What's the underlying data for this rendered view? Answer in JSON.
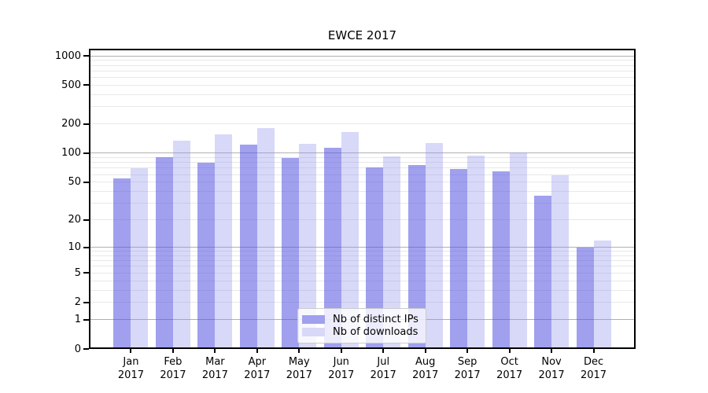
{
  "title": "EWCE 2017",
  "legend": {
    "items": [
      {
        "label": "Nb of distinct IPs",
        "series": "distinct_ips"
      },
      {
        "label": "Nb of downloads",
        "series": "downloads"
      }
    ]
  },
  "x_axis": {
    "year": "2017",
    "months": [
      "Jan",
      "Feb",
      "Mar",
      "Apr",
      "May",
      "Jun",
      "Jul",
      "Aug",
      "Sep",
      "Oct",
      "Nov",
      "Dec"
    ]
  },
  "y_axis": {
    "tick_values": [
      1000,
      500,
      200,
      100,
      50,
      20,
      10,
      5,
      2,
      1,
      0
    ],
    "tick_labels": [
      "1000",
      "500",
      "200",
      "100",
      "50",
      "20",
      "10",
      "5",
      "2",
      "1",
      "0"
    ],
    "scale": "log1p",
    "major_grid_values": [
      1,
      10,
      100,
      1000
    ],
    "minor_grid_values": [
      2,
      3,
      4,
      5,
      6,
      7,
      8,
      9,
      20,
      30,
      40,
      50,
      60,
      70,
      80,
      90,
      200,
      300,
      400,
      500,
      600,
      700,
      800,
      900
    ]
  },
  "colors": {
    "distinct_ips": "#a0a0ee",
    "distinct_ips_rgba": "rgba(82,82,224,0.55)",
    "downloads": "#d8d8f8",
    "downloads_rgba": "rgba(144,144,235,0.35)",
    "major_grid": "#b0b0b0",
    "minor_grid": "#e8e8e8",
    "axis": "#000000",
    "legend_border": "#cccccc"
  },
  "chart_data": {
    "type": "bar",
    "title": "EWCE 2017",
    "categories": [
      "Jan 2017",
      "Feb 2017",
      "Mar 2017",
      "Apr 2017",
      "May 2017",
      "Jun 2017",
      "Jul 2017",
      "Aug 2017",
      "Sep 2017",
      "Oct 2017",
      "Nov 2017",
      "Dec 2017"
    ],
    "series": [
      {
        "name": "Nb of distinct IPs",
        "values": [
          55,
          91,
          80,
          122,
          89,
          114,
          71,
          75,
          69,
          65,
          36,
          10
        ]
      },
      {
        "name": "Nb of downloads",
        "values": [
          70,
          134,
          156,
          180,
          125,
          165,
          93,
          128,
          95,
          101,
          59,
          12
        ]
      }
    ],
    "xlabel": "",
    "ylabel": "",
    "yscale": "log1p",
    "yticks": [
      0,
      1,
      2,
      5,
      10,
      20,
      50,
      100,
      200,
      500,
      1000
    ],
    "ylim": [
      0,
      1185
    ],
    "grid": "on",
    "legend_position": "inside-bottom-center"
  }
}
